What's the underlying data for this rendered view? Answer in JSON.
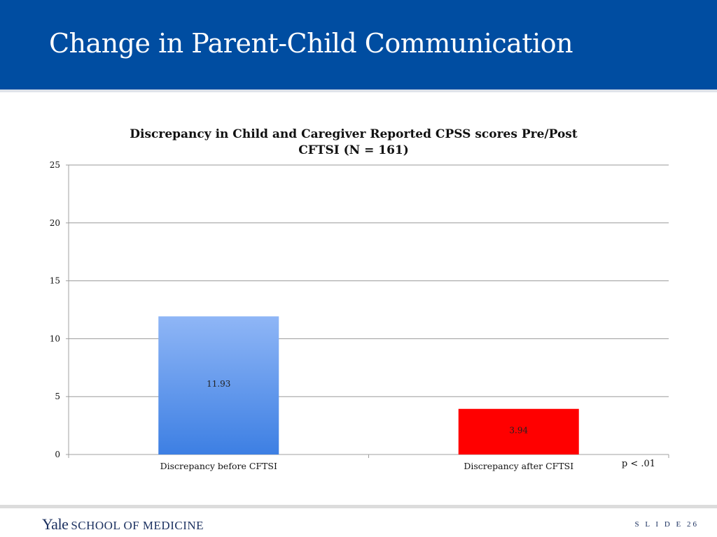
{
  "slide": {
    "title": "Change in Parent-Child Communication",
    "footer_logo_yale": "Yale",
    "footer_logo_school": "SCHOOL OF MEDICINE",
    "slide_number": "S L I D E  26",
    "colors": {
      "header": "#004da1",
      "text_dark": "#1c3160"
    }
  },
  "chart_data": {
    "type": "bar",
    "title": "Discrepancy in Child and Caregiver Reported CPSS scores Pre/Post CFTSI (N = 161)",
    "title_lines": [
      "Discrepancy in Child and Caregiver Reported CPSS scores Pre/Post",
      "CFTSI (N = 161)"
    ],
    "categories": [
      "Discrepancy before CFTSI",
      "Discrepancy after CFTSI"
    ],
    "values": [
      11.93,
      3.94
    ],
    "data_labels": [
      "11.93",
      "3.94"
    ],
    "bar_colors": [
      {
        "top": "#8fb6f6",
        "bottom": "#3d7fe3"
      },
      {
        "top": "#ff0000",
        "bottom": "#ff0000"
      }
    ],
    "ylim": [
      0,
      25
    ],
    "yticks": [
      0,
      5,
      10,
      15,
      20,
      25
    ],
    "grid": true,
    "annotation": "p < .01",
    "xlabel": "",
    "ylabel": ""
  }
}
